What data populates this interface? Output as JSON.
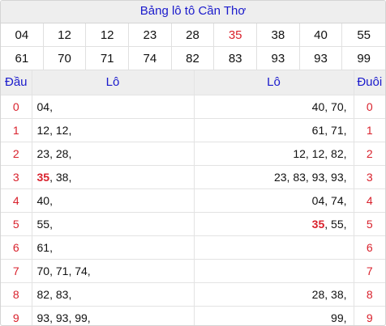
{
  "title": "Bảng lô tô Cần Thơ",
  "numbers_row1": [
    "04",
    "12",
    "12",
    "23",
    "28",
    "35",
    "38",
    "40",
    "55"
  ],
  "numbers_row2": [
    "61",
    "70",
    "71",
    "74",
    "82",
    "83",
    "93",
    "93",
    "99"
  ],
  "highlight_number": "35",
  "headers": {
    "dau": "Đầu",
    "lo_left": "Lô",
    "lo_right": "Lô",
    "duoi": "Đuôi"
  },
  "rows": [
    {
      "dau": "0",
      "left": [
        "04"
      ],
      "right": [
        "40",
        "70"
      ],
      "duoi": "0"
    },
    {
      "dau": "1",
      "left": [
        "12",
        "12"
      ],
      "right": [
        "61",
        "71"
      ],
      "duoi": "1"
    },
    {
      "dau": "2",
      "left": [
        "23",
        "28"
      ],
      "right": [
        "12",
        "12",
        "82"
      ],
      "duoi": "2"
    },
    {
      "dau": "3",
      "left": [
        "35",
        "38"
      ],
      "right": [
        "23",
        "83",
        "93",
        "93"
      ],
      "duoi": "3"
    },
    {
      "dau": "4",
      "left": [
        "40"
      ],
      "right": [
        "04",
        "74"
      ],
      "duoi": "4"
    },
    {
      "dau": "5",
      "left": [
        "55"
      ],
      "right": [
        "35",
        "55"
      ],
      "duoi": "5"
    },
    {
      "dau": "6",
      "left": [
        "61"
      ],
      "right": [],
      "duoi": "6"
    },
    {
      "dau": "7",
      "left": [
        "70",
        "71",
        "74"
      ],
      "right": [],
      "duoi": "7"
    },
    {
      "dau": "8",
      "left": [
        "82",
        "83"
      ],
      "right": [
        "28",
        "38"
      ],
      "duoi": "8"
    },
    {
      "dau": "9",
      "left": [
        "93",
        "93",
        "99"
      ],
      "right": [
        "99"
      ],
      "duoi": "9"
    }
  ],
  "colors": {
    "header_text": "#1a1acc",
    "accent_red": "#d9212c",
    "header_bg": "#eeeeee"
  }
}
